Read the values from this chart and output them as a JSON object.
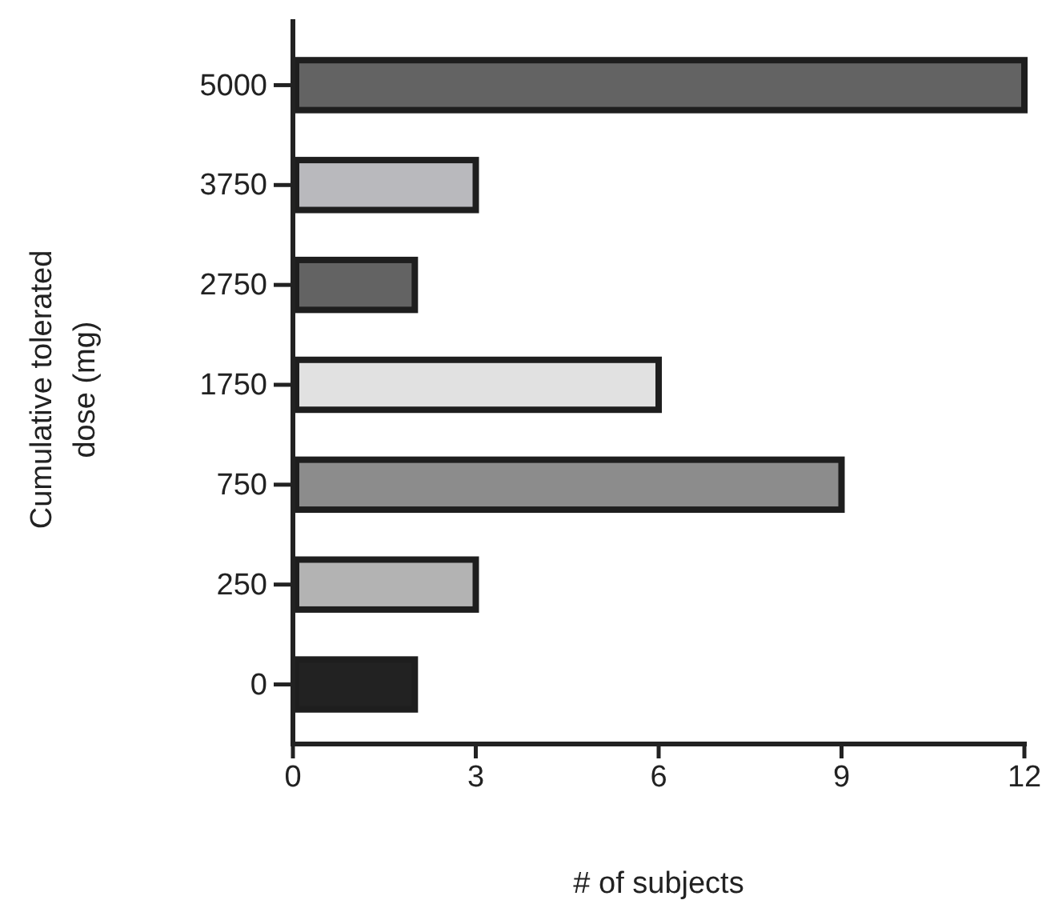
{
  "chart_data": {
    "type": "bar",
    "orientation": "horizontal",
    "xlabel": "# of subjects",
    "ylabel": "Cumulative tolerated dose (mg)",
    "categories": [
      "5000",
      "3750",
      "2750",
      "1750",
      "750",
      "250",
      "0"
    ],
    "values": [
      12,
      3,
      2,
      6,
      9,
      3,
      2
    ],
    "colors": [
      "#636363",
      "#b9b9bd",
      "#636363",
      "#e1e1e1",
      "#8c8c8c",
      "#b3b3b3",
      "#222222"
    ],
    "xlim": [
      0,
      12
    ],
    "xticks": [
      0,
      3,
      6,
      9,
      12
    ],
    "grid": false
  }
}
